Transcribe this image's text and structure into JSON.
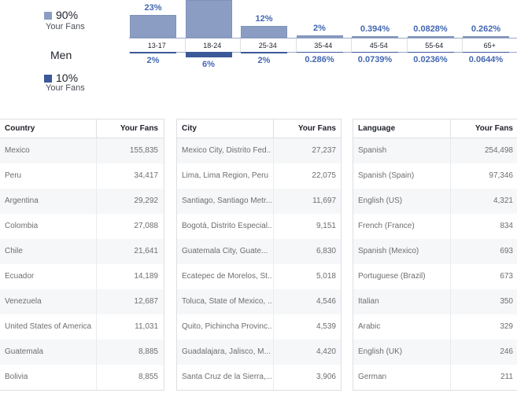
{
  "legend": {
    "women_pct": "90%",
    "women_fans": "Your Fans",
    "men_label": "Men",
    "men_pct": "10%",
    "men_fans": "Your Fans",
    "women_color": "#8b9dc3",
    "men_color": "#3b5998"
  },
  "chart_data": {
    "type": "bar",
    "categories": [
      "13-17",
      "18-24",
      "25-34",
      "35-44",
      "45-54",
      "55-64",
      "65+"
    ],
    "series": [
      {
        "values": [
          23,
          50,
          12,
          2,
          0.394,
          0.0828,
          0.262
        ],
        "labels": [
          "23%",
          "",
          "12%",
          "2%",
          "0.394%",
          "0.0828%",
          "0.262%"
        ]
      },
      {
        "values": [
          2,
          6,
          2,
          0.286,
          0.0739,
          0.0236,
          0.0644
        ],
        "labels": [
          "2%",
          "6%",
          "2%",
          "0.286%",
          "0.0739%",
          "0.0236%",
          "0.0644%"
        ]
      }
    ]
  },
  "tables": [
    {
      "col1": "Country",
      "col2": "Your Fans",
      "rows": [
        [
          "Mexico",
          "155,835"
        ],
        [
          "Peru",
          "34,417"
        ],
        [
          "Argentina",
          "29,292"
        ],
        [
          "Colombia",
          "27,088"
        ],
        [
          "Chile",
          "21,641"
        ],
        [
          "Ecuador",
          "14,189"
        ],
        [
          "Venezuela",
          "12,687"
        ],
        [
          "United States of America",
          "11,031"
        ],
        [
          "Guatemala",
          "8,885"
        ],
        [
          "Bolivia",
          "8,855"
        ]
      ]
    },
    {
      "col1": "City",
      "col2": "Your Fans",
      "rows": [
        [
          "Mexico City, Distrito Fed...",
          "27,237"
        ],
        [
          "Lima, Lima Region, Peru",
          "22,075"
        ],
        [
          "Santiago, Santiago Metr...",
          "11,697"
        ],
        [
          "Bogotá, Distrito Especial...",
          "9,151"
        ],
        [
          "Guatemala City, Guate...",
          "6,830"
        ],
        [
          "Ecatepec de Morelos, St...",
          "5,018"
        ],
        [
          "Toluca, State of Mexico, ...",
          "4,546"
        ],
        [
          "Quito, Pichincha Provinc...",
          "4,539"
        ],
        [
          "Guadalajara, Jalisco, M...",
          "4,420"
        ],
        [
          "Santa Cruz de la Sierra,...",
          "3,906"
        ]
      ]
    },
    {
      "col1": "Language",
      "col2": "Your Fans",
      "rows": [
        [
          "Spanish",
          "254,498"
        ],
        [
          "Spanish (Spain)",
          "97,346"
        ],
        [
          "English (US)",
          "4,321"
        ],
        [
          "French (France)",
          "834"
        ],
        [
          "Spanish (Mexico)",
          "693"
        ],
        [
          "Portuguese (Brazil)",
          "673"
        ],
        [
          "Italian",
          "350"
        ],
        [
          "Arabic",
          "329"
        ],
        [
          "English (UK)",
          "246"
        ],
        [
          "German",
          "211"
        ]
      ]
    }
  ]
}
